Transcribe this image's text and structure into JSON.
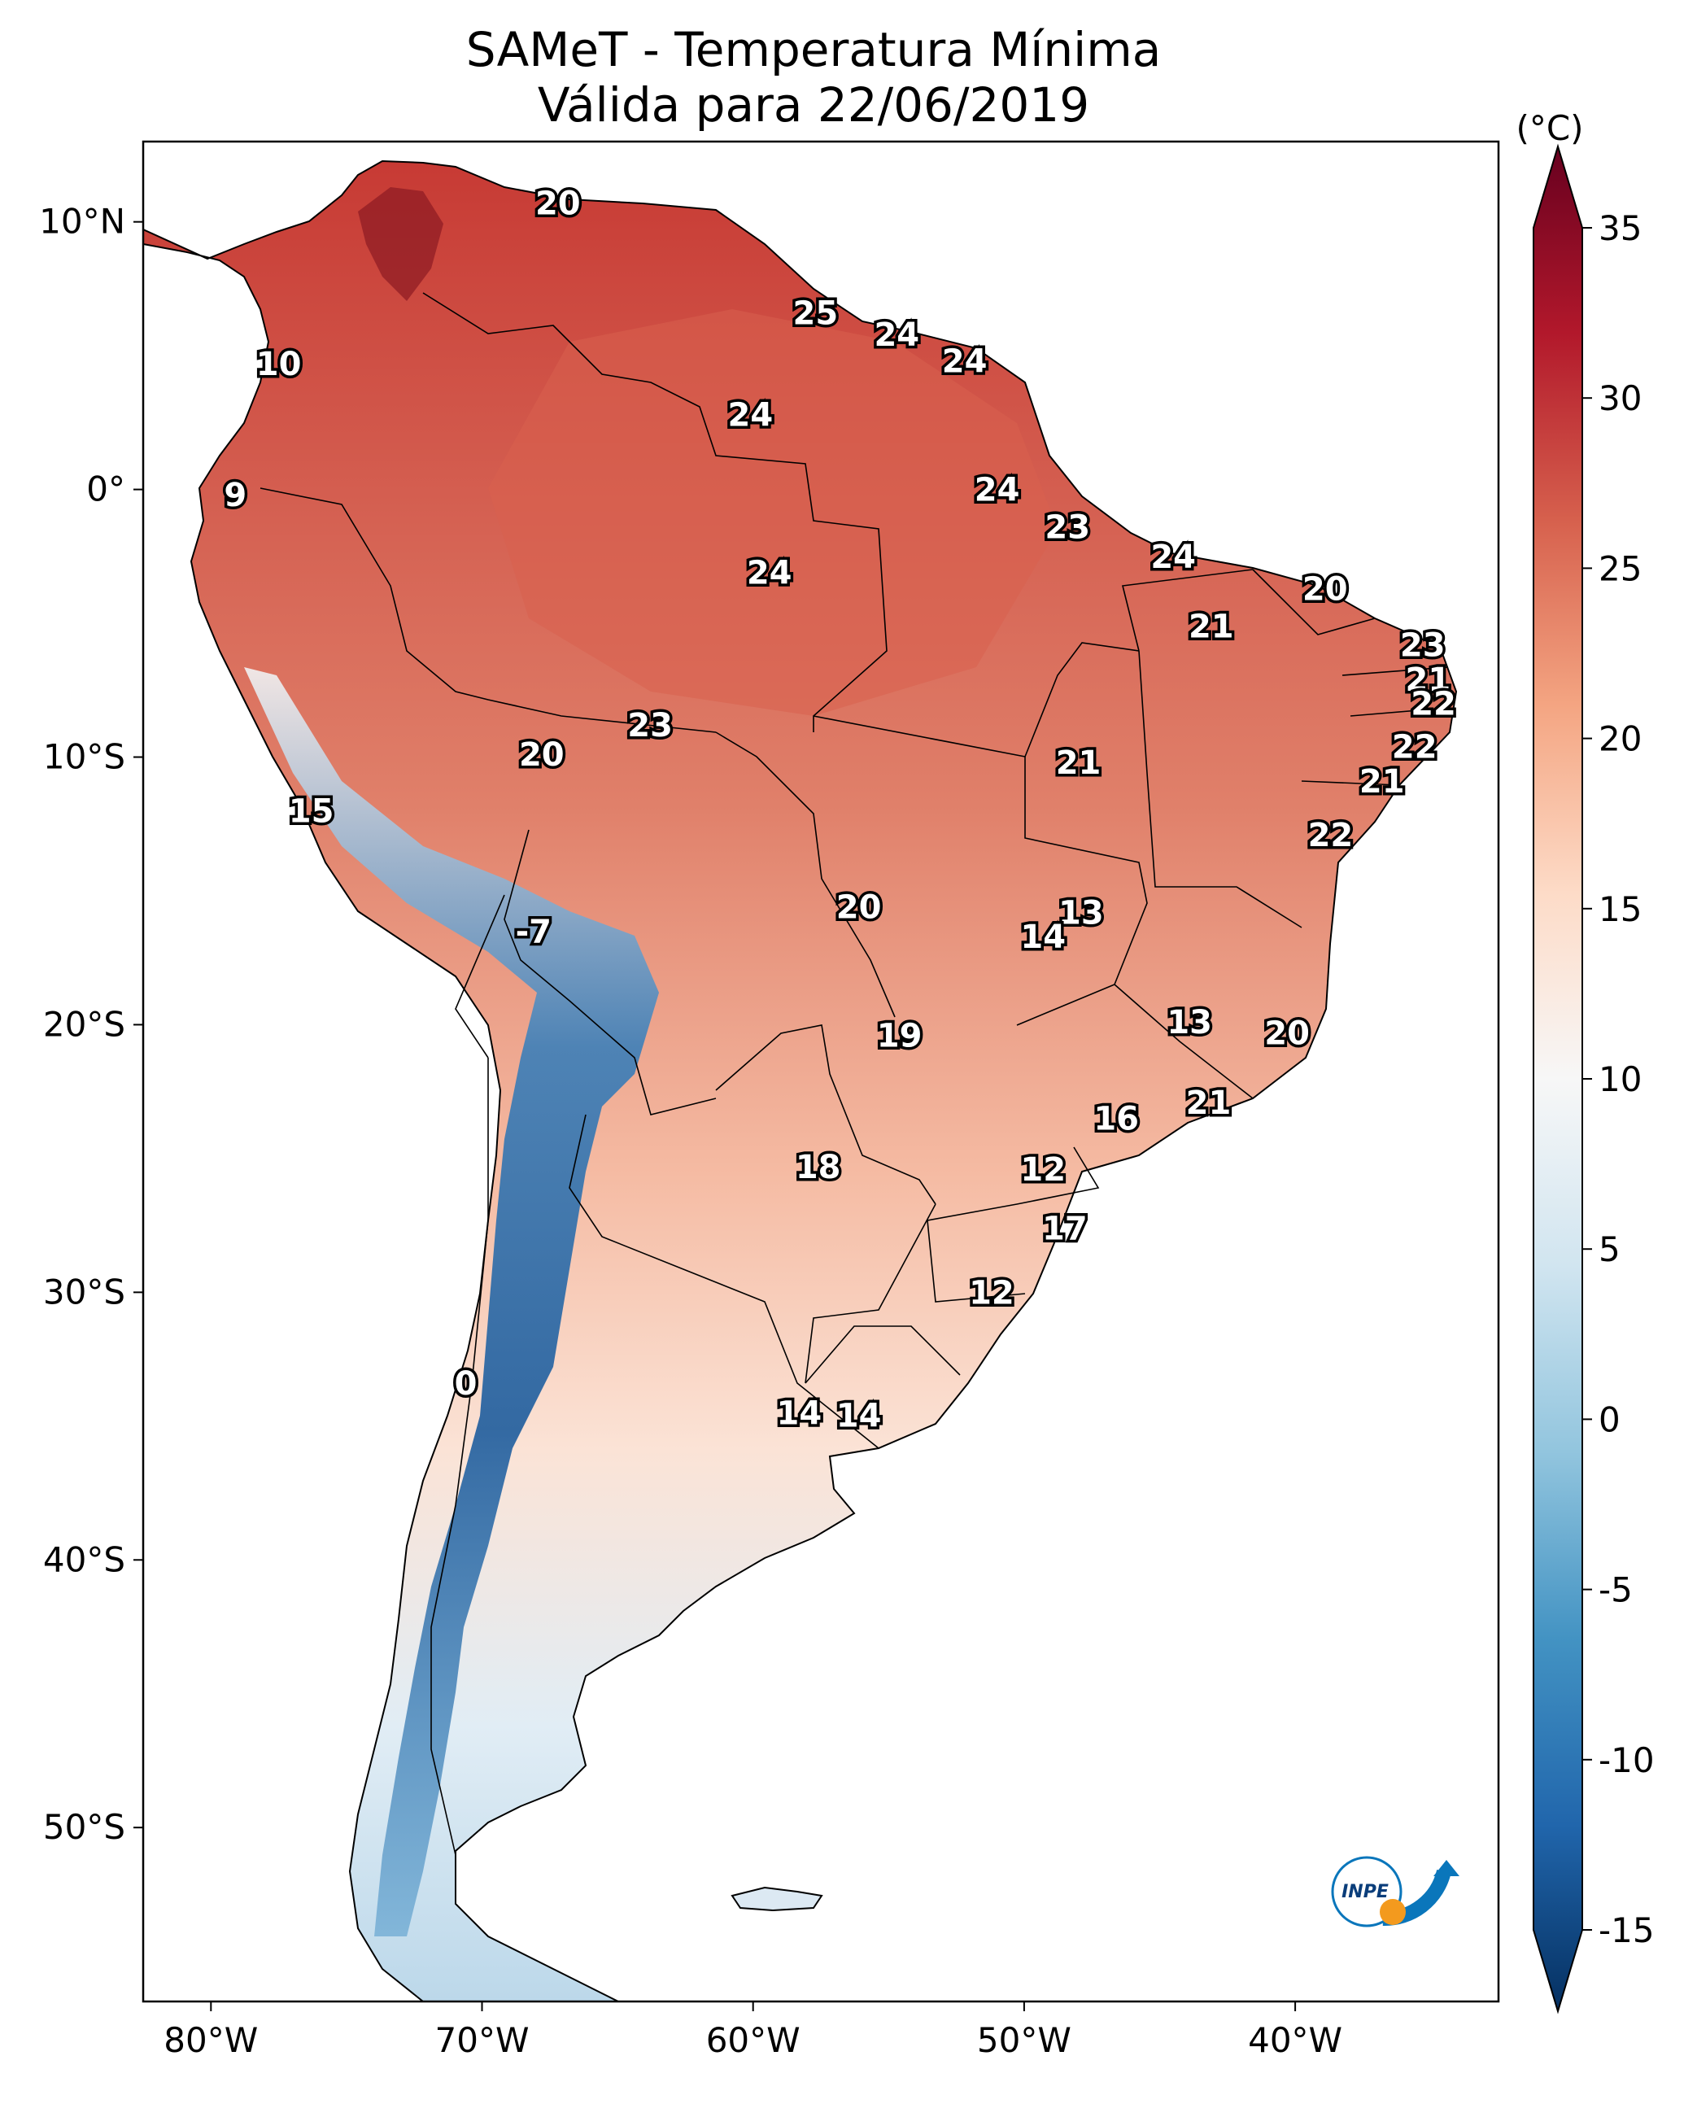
{
  "title_line1": "SAMeT - Temperatura Mínima",
  "title_line2": "Válida para 22/06/2019",
  "colorbar": {
    "unit": "(°C)",
    "min": -17.5,
    "max": 37.5,
    "ticks": [
      "35",
      "30",
      "25",
      "20",
      "15",
      "10",
      "5",
      "0",
      "-5",
      "-10",
      "-15"
    ],
    "tick_values": [
      35,
      30,
      25,
      20,
      15,
      10,
      5,
      0,
      -5,
      -10,
      -15
    ],
    "colors": [
      "#053061",
      "#2166ac",
      "#4393c3",
      "#92c5de",
      "#d1e5f0",
      "#f7f7f7",
      "#fddbc7",
      "#f4a582",
      "#d6604d",
      "#b2182b",
      "#67001f"
    ]
  },
  "axes": {
    "lon_ticks": [
      "80°W",
      "70°W",
      "60°W",
      "50°W",
      "40°W"
    ],
    "lon_values": [
      -80,
      -70,
      -60,
      -50,
      -40
    ],
    "lat_ticks": [
      "10°N",
      "0°",
      "10°S",
      "20°S",
      "30°S",
      "40°S",
      "50°S"
    ],
    "lat_values": [
      10,
      0,
      -10,
      -20,
      -30,
      -40,
      -50
    ],
    "lon_range": [
      -82.5,
      -32.5
    ],
    "lat_range": [
      -56.5,
      13.0
    ]
  },
  "logo_text": "INPE",
  "station_labels": [
    {
      "lon": -67.2,
      "lat": 10.7,
      "value": "20"
    },
    {
      "lon": -77.5,
      "lat": 4.7,
      "value": "10"
    },
    {
      "lon": -79.1,
      "lat": -0.2,
      "value": "9"
    },
    {
      "lon": -57.7,
      "lat": 6.6,
      "value": "25"
    },
    {
      "lon": -54.7,
      "lat": 5.8,
      "value": "24"
    },
    {
      "lon": -52.2,
      "lat": 4.8,
      "value": "24"
    },
    {
      "lon": -60.1,
      "lat": 2.8,
      "value": "24"
    },
    {
      "lon": -51.0,
      "lat": 0.0,
      "value": "24"
    },
    {
      "lon": -48.4,
      "lat": -1.4,
      "value": "23"
    },
    {
      "lon": -44.5,
      "lat": -2.5,
      "value": "24"
    },
    {
      "lon": -59.4,
      "lat": -3.1,
      "value": "24"
    },
    {
      "lon": -38.9,
      "lat": -3.7,
      "value": "20"
    },
    {
      "lon": -43.1,
      "lat": -5.1,
      "value": "21"
    },
    {
      "lon": -35.3,
      "lat": -5.8,
      "value": "23"
    },
    {
      "lon": -35.1,
      "lat": -7.1,
      "value": "21"
    },
    {
      "lon": -34.9,
      "lat": -8.0,
      "value": "22"
    },
    {
      "lon": -35.6,
      "lat": -9.6,
      "value": "22"
    },
    {
      "lon": -36.8,
      "lat": -10.9,
      "value": "21"
    },
    {
      "lon": -38.7,
      "lat": -12.9,
      "value": "22"
    },
    {
      "lon": -63.8,
      "lat": -8.8,
      "value": "23"
    },
    {
      "lon": -67.8,
      "lat": -9.9,
      "value": "20"
    },
    {
      "lon": -48.0,
      "lat": -10.2,
      "value": "21"
    },
    {
      "lon": -76.3,
      "lat": -12.0,
      "value": "15"
    },
    {
      "lon": -68.1,
      "lat": -16.5,
      "value": "-7"
    },
    {
      "lon": -56.1,
      "lat": -15.6,
      "value": "20"
    },
    {
      "lon": -47.9,
      "lat": -15.8,
      "value": "13"
    },
    {
      "lon": -49.3,
      "lat": -16.7,
      "value": "14"
    },
    {
      "lon": -54.6,
      "lat": -20.4,
      "value": "19"
    },
    {
      "lon": -43.9,
      "lat": -19.9,
      "value": "13"
    },
    {
      "lon": -40.3,
      "lat": -20.3,
      "value": "20"
    },
    {
      "lon": -43.2,
      "lat": -22.9,
      "value": "21"
    },
    {
      "lon": -46.6,
      "lat": -23.5,
      "value": "16"
    },
    {
      "lon": -57.6,
      "lat": -25.3,
      "value": "18"
    },
    {
      "lon": -49.3,
      "lat": -25.4,
      "value": "12"
    },
    {
      "lon": -48.5,
      "lat": -27.6,
      "value": "17"
    },
    {
      "lon": -51.2,
      "lat": -30.0,
      "value": "12"
    },
    {
      "lon": -70.6,
      "lat": -33.4,
      "value": "0"
    },
    {
      "lon": -58.3,
      "lat": -34.5,
      "value": "14"
    },
    {
      "lon": -56.1,
      "lat": -34.6,
      "value": "14"
    }
  ]
}
